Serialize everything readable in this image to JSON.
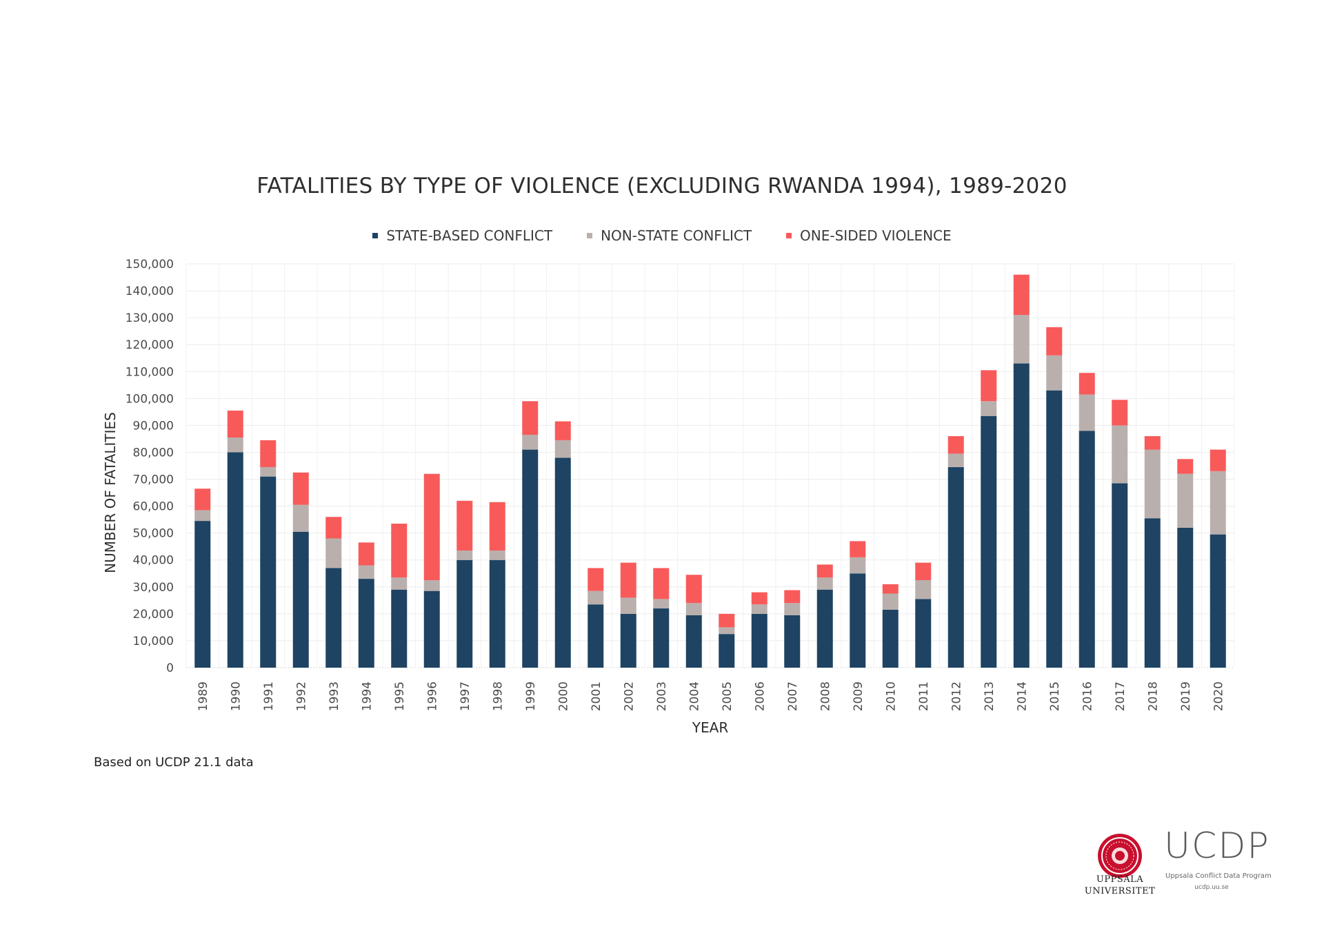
{
  "chart_data": {
    "type": "bar",
    "stacked": true,
    "title": "FATALITIES BY TYPE OF  VIOLENCE (EXCLUDING RWANDA 1994), 1989-2020",
    "xlabel": "YEAR",
    "ylabel": "NUMBER OF FATALITIES",
    "ylim": [
      0,
      150000
    ],
    "yticks": [
      "0",
      "10,000",
      "20,000",
      "30,000",
      "40,000",
      "50,000",
      "60,000",
      "70,000",
      "80,000",
      "90,000",
      "100,000",
      "110,000",
      "120,000",
      "130,000",
      "140,000",
      "150,000"
    ],
    "grid": true,
    "legend_position": "top-center",
    "categories": [
      "1989",
      "1990",
      "1991",
      "1992",
      "1993",
      "1994",
      "1995",
      "1996",
      "1997",
      "1998",
      "1999",
      "2000",
      "2001",
      "2002",
      "2003",
      "2004",
      "2005",
      "2006",
      "2007",
      "2008",
      "2009",
      "2010",
      "2011",
      "2012",
      "2013",
      "2014",
      "2015",
      "2016",
      "2017",
      "2018",
      "2019",
      "2020"
    ],
    "series": [
      {
        "name": "STATE-BASED CONFLICT",
        "color": "#1e4363",
        "values": [
          54500,
          80000,
          71000,
          50500,
          37000,
          33000,
          29000,
          28500,
          40000,
          40000,
          81000,
          78000,
          23500,
          20000,
          22000,
          19500,
          12500,
          20000,
          19500,
          29000,
          35000,
          21500,
          25500,
          74500,
          93500,
          113000,
          103000,
          88000,
          68500,
          55500,
          52000,
          49500
        ]
      },
      {
        "name": "NON-STATE CONFLICT",
        "color": "#b9b0ad",
        "values": [
          4000,
          5500,
          3500,
          10000,
          11000,
          5000,
          4500,
          4000,
          3500,
          3500,
          5500,
          6500,
          5000,
          6000,
          3500,
          4500,
          2500,
          3500,
          4500,
          4500,
          6000,
          6000,
          7000,
          5000,
          5500,
          18000,
          13000,
          13500,
          21500,
          25500,
          20000,
          23500
        ]
      },
      {
        "name": "ONE-SIDED VIOLENCE",
        "color": "#f85a5a",
        "values": [
          8000,
          10000,
          10000,
          12000,
          8000,
          8500,
          20000,
          39500,
          18500,
          18000,
          12500,
          7000,
          8500,
          13000,
          11500,
          10500,
          5000,
          4500,
          4800,
          4800,
          6000,
          3500,
          6500,
          6500,
          11500,
          15000,
          10500,
          8000,
          9500,
          5000,
          5500,
          8000
        ]
      }
    ]
  },
  "source_note": "Based on UCDP 21.1 data",
  "logos": {
    "university_line1": "UPPSALA",
    "university_line2": "UNIVERSITET",
    "ucdp": "UCDP",
    "ucdp_subtitle": "Uppsala Conflict Data Program",
    "ucdp_url": "ucdp.uu.se"
  }
}
